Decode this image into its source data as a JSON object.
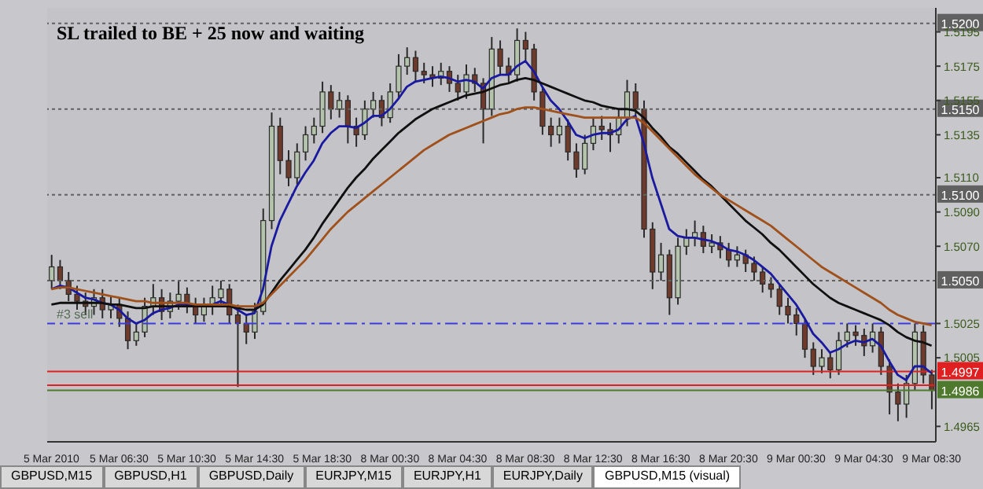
{
  "chart_data": {
    "type": "candlestick",
    "categories": [
      "5 Mar 2010",
      null,
      null,
      null,
      null,
      null,
      null,
      null,
      "5 Mar 06:30",
      null,
      null,
      null,
      null,
      null,
      null,
      null,
      "5 Mar 10:30",
      null,
      null,
      null,
      null,
      null,
      null,
      null,
      "5 Mar 14:30",
      null,
      null,
      null,
      null,
      null,
      null,
      null,
      "5 Mar 18:30",
      null,
      null,
      null,
      null,
      null,
      null,
      null,
      "8 Mar 00:30",
      null,
      null,
      null,
      null,
      null,
      null,
      null,
      "8 Mar 04:30",
      null,
      null,
      null,
      null,
      null,
      null,
      null,
      "8 Mar 08:30",
      null,
      null,
      null,
      null,
      null,
      null,
      null,
      "8 Mar 12:30",
      null,
      null,
      null,
      null,
      null,
      null,
      null,
      "8 Mar 16:30",
      null,
      null,
      null,
      null,
      null,
      null,
      null,
      "8 Mar 20:30",
      null,
      null,
      null,
      null,
      null,
      null,
      null,
      "9 Mar 00:30",
      null,
      null,
      null,
      null,
      null,
      null,
      null,
      "9 Mar 04:30",
      null,
      null,
      null,
      null,
      null,
      null,
      null,
      "9 Mar 08:30"
    ],
    "ohlc": [
      [
        1.505,
        1.5065,
        1.5045,
        1.5058
      ],
      [
        1.5058,
        1.5062,
        1.5045,
        1.505
      ],
      [
        1.505,
        1.5055,
        1.5038,
        1.5042
      ],
      [
        1.5042,
        1.5047,
        1.5033,
        1.5038
      ],
      [
        1.5038,
        1.5043,
        1.503,
        1.5035
      ],
      [
        1.5035,
        1.5045,
        1.503,
        1.504
      ],
      [
        1.504,
        1.5045,
        1.5028,
        1.5033
      ],
      [
        1.5033,
        1.5041,
        1.5028,
        1.5036
      ],
      [
        1.5036,
        1.504,
        1.5023,
        1.5028
      ],
      [
        1.5028,
        1.5032,
        1.501,
        1.5015
      ],
      [
        1.5015,
        1.5025,
        1.5012,
        1.502
      ],
      [
        1.502,
        1.504,
        1.5017,
        1.5035
      ],
      [
        1.5035,
        1.5048,
        1.503,
        1.504
      ],
      [
        1.504,
        1.5045,
        1.5027,
        1.5032
      ],
      [
        1.5032,
        1.5043,
        1.5028,
        1.5038
      ],
      [
        1.5038,
        1.505,
        1.5033,
        1.5042
      ],
      [
        1.5042,
        1.5046,
        1.5031,
        1.5036
      ],
      [
        1.5036,
        1.504,
        1.5025,
        1.503
      ],
      [
        1.503,
        1.504,
        1.5026,
        1.5035
      ],
      [
        1.5035,
        1.5047,
        1.503,
        1.504
      ],
      [
        1.504,
        1.505,
        1.5036,
        1.5045
      ],
      [
        1.5045,
        1.5048,
        1.5025,
        1.503
      ],
      [
        1.503,
        1.5036,
        1.4988,
        1.5025
      ],
      [
        1.5025,
        1.503,
        1.5013,
        1.502
      ],
      [
        1.502,
        1.5037,
        1.5016,
        1.5032
      ],
      [
        1.5032,
        1.5092,
        1.503,
        1.5085
      ],
      [
        1.5085,
        1.5148,
        1.508,
        1.514
      ],
      [
        1.514,
        1.5145,
        1.5112,
        1.512
      ],
      [
        1.512,
        1.5126,
        1.5105,
        1.511
      ],
      [
        1.511,
        1.513,
        1.5106,
        1.5125
      ],
      [
        1.5125,
        1.514,
        1.512,
        1.5135
      ],
      [
        1.5135,
        1.5145,
        1.513,
        1.514
      ],
      [
        1.514,
        1.5166,
        1.5136,
        1.516
      ],
      [
        1.516,
        1.5164,
        1.5144,
        1.515
      ],
      [
        1.515,
        1.516,
        1.5145,
        1.5155
      ],
      [
        1.5155,
        1.5158,
        1.513,
        1.514
      ],
      [
        1.514,
        1.5145,
        1.5128,
        1.5135
      ],
      [
        1.5135,
        1.5155,
        1.5132,
        1.515
      ],
      [
        1.515,
        1.516,
        1.5145,
        1.5155
      ],
      [
        1.5155,
        1.5158,
        1.514,
        1.5145
      ],
      [
        1.5145,
        1.5165,
        1.5142,
        1.516
      ],
      [
        1.516,
        1.5182,
        1.5156,
        1.5175
      ],
      [
        1.5175,
        1.5186,
        1.517,
        1.518
      ],
      [
        1.518,
        1.5184,
        1.5166,
        1.5172
      ],
      [
        1.5172,
        1.5177,
        1.5165,
        1.517
      ],
      [
        1.517,
        1.5175,
        1.5163,
        1.5168
      ],
      [
        1.5168,
        1.5177,
        1.5164,
        1.5172
      ],
      [
        1.5172,
        1.5175,
        1.516,
        1.5165
      ],
      [
        1.5165,
        1.517,
        1.5155,
        1.516
      ],
      [
        1.516,
        1.5176,
        1.5156,
        1.517
      ],
      [
        1.517,
        1.5174,
        1.516,
        1.5165
      ],
      [
        1.5165,
        1.5168,
        1.513,
        1.515
      ],
      [
        1.515,
        1.5192,
        1.5146,
        1.5185
      ],
      [
        1.5185,
        1.519,
        1.517,
        1.5175
      ],
      [
        1.5175,
        1.518,
        1.5165,
        1.517
      ],
      [
        1.517,
        1.5197,
        1.5166,
        1.519
      ],
      [
        1.519,
        1.5195,
        1.5178,
        1.5185
      ],
      [
        1.5185,
        1.5188,
        1.5155,
        1.516
      ],
      [
        1.516,
        1.5163,
        1.5135,
        1.514
      ],
      [
        1.514,
        1.5145,
        1.5128,
        1.5135
      ],
      [
        1.5135,
        1.5145,
        1.513,
        1.514
      ],
      [
        1.514,
        1.5144,
        1.512,
        1.5125
      ],
      [
        1.5125,
        1.513,
        1.511,
        1.5115
      ],
      [
        1.5115,
        1.5135,
        1.5112,
        1.513
      ],
      [
        1.513,
        1.5145,
        1.5126,
        1.514
      ],
      [
        1.514,
        1.5146,
        1.5132,
        1.5138
      ],
      [
        1.5138,
        1.5142,
        1.5125,
        1.5135
      ],
      [
        1.5135,
        1.515,
        1.513,
        1.5145
      ],
      [
        1.5145,
        1.5167,
        1.514,
        1.516
      ],
      [
        1.516,
        1.5165,
        1.5145,
        1.515
      ],
      [
        1.515,
        1.5155,
        1.5075,
        1.508
      ],
      [
        1.508,
        1.5084,
        1.5045,
        1.5055
      ],
      [
        1.5055,
        1.5072,
        1.505,
        1.5065
      ],
      [
        1.5065,
        1.5068,
        1.503,
        1.504
      ],
      [
        1.504,
        1.5075,
        1.5036,
        1.507
      ],
      [
        1.507,
        1.508,
        1.5065,
        1.5075
      ],
      [
        1.5075,
        1.5085,
        1.507,
        1.5078
      ],
      [
        1.5078,
        1.5082,
        1.5066,
        1.507
      ],
      [
        1.507,
        1.5077,
        1.5066,
        1.5072
      ],
      [
        1.5072,
        1.5076,
        1.5063,
        1.5068
      ],
      [
        1.5068,
        1.5072,
        1.5058,
        1.5062
      ],
      [
        1.5062,
        1.507,
        1.5058,
        1.5065
      ],
      [
        1.5065,
        1.5068,
        1.5055,
        1.506
      ],
      [
        1.506,
        1.5064,
        1.505,
        1.5055
      ],
      [
        1.5055,
        1.5058,
        1.5043,
        1.5048
      ],
      [
        1.5048,
        1.5052,
        1.504,
        1.5045
      ],
      [
        1.5045,
        1.5048,
        1.503,
        1.5035
      ],
      [
        1.5035,
        1.504,
        1.5025,
        1.503
      ],
      [
        1.503,
        1.5034,
        1.5018,
        1.5025
      ],
      [
        1.5025,
        1.5028,
        1.5005,
        1.501
      ],
      [
        1.501,
        1.5014,
        1.4995,
        1.5
      ],
      [
        1.5,
        1.501,
        1.4996,
        1.5005
      ],
      [
        1.5005,
        1.5008,
        1.4993,
        1.4998
      ],
      [
        1.4998,
        1.502,
        1.4995,
        1.5015
      ],
      [
        1.5015,
        1.5025,
        1.5011,
        1.502
      ],
      [
        1.502,
        1.5024,
        1.5012,
        1.5018
      ],
      [
        1.5018,
        1.5022,
        1.5006,
        1.5012
      ],
      [
        1.5012,
        1.5025,
        1.5008,
        1.502
      ],
      [
        1.502,
        1.5023,
        1.4995,
        1.5
      ],
      [
        1.5,
        1.5004,
        1.4972,
        1.4985
      ],
      [
        1.4985,
        1.499,
        1.4968,
        1.4978
      ],
      [
        1.4978,
        1.4995,
        1.497,
        1.499
      ],
      [
        1.499,
        1.5025,
        1.4986,
        1.502
      ],
      [
        1.502,
        1.5024,
        1.499,
        1.4995
      ],
      [
        1.4995,
        1.4998,
        1.4975,
        1.4986
      ]
    ],
    "series": [
      {
        "type": "line",
        "color": "#1a1aa0",
        "values": [
          1.5045,
          1.5047,
          1.5046,
          1.5043,
          1.504,
          1.5039,
          1.5037,
          1.5036,
          1.5033,
          1.5028,
          1.5025,
          1.5027,
          1.5031,
          1.5033,
          1.5034,
          1.5036,
          1.5036,
          1.5035,
          1.5035,
          1.5036,
          1.5038,
          1.5036,
          1.5033,
          1.503,
          1.5031,
          1.5045,
          1.507,
          1.5085,
          1.5095,
          1.5105,
          1.5113,
          1.512,
          1.513,
          1.5136,
          1.514,
          1.514,
          1.5139,
          1.5142,
          1.5146,
          1.5146,
          1.515,
          1.5156,
          1.5163,
          1.5166,
          1.5167,
          1.5168,
          1.5169,
          1.5168,
          1.5166,
          1.5167,
          1.5166,
          1.5162,
          1.5168,
          1.517,
          1.517,
          1.5175,
          1.5178,
          1.5172,
          1.5163,
          1.5155,
          1.515,
          1.5143,
          1.5135,
          1.5133,
          1.5135,
          1.5136,
          1.5136,
          1.5138,
          1.5144,
          1.5146,
          1.513,
          1.511,
          1.5095,
          1.508,
          1.5076,
          1.5075,
          1.5075,
          1.5074,
          1.5073,
          1.5071,
          1.5068,
          1.5067,
          1.5065,
          1.5062,
          1.5058,
          1.5054,
          1.5048,
          1.5042,
          1.5036,
          1.5028,
          1.5019,
          1.5014,
          1.5008,
          1.501,
          1.5013,
          1.5015,
          1.5014,
          1.5016,
          1.5012,
          1.5003,
          1.4995,
          1.4992,
          1.5,
          1.5,
          1.4996
        ]
      },
      {
        "type": "line",
        "color": "#101010",
        "values": [
          1.5036,
          1.5037,
          1.5037,
          1.5037,
          1.5037,
          1.5037,
          1.5037,
          1.5036,
          1.5036,
          1.5035,
          1.5034,
          1.5034,
          1.5035,
          1.5035,
          1.5035,
          1.5035,
          1.5035,
          1.5035,
          1.5035,
          1.5035,
          1.5035,
          1.5035,
          1.5034,
          1.5033,
          1.5033,
          1.5036,
          1.5043,
          1.505,
          1.5056,
          1.5062,
          1.5068,
          1.5075,
          1.5083,
          1.509,
          1.5097,
          1.5104,
          1.511,
          1.5115,
          1.5121,
          1.5126,
          1.5131,
          1.5136,
          1.514,
          1.5144,
          1.5147,
          1.515,
          1.5152,
          1.5154,
          1.5156,
          1.5158,
          1.5159,
          1.516,
          1.5162,
          1.5164,
          1.5165,
          1.5167,
          1.5168,
          1.5167,
          1.5165,
          1.5163,
          1.5161,
          1.5159,
          1.5157,
          1.5155,
          1.5154,
          1.5152,
          1.5151,
          1.515,
          1.515,
          1.5149,
          1.5145,
          1.5139,
          1.5134,
          1.5128,
          1.5124,
          1.5119,
          1.5114,
          1.5109,
          1.5105,
          1.51,
          1.5095,
          1.509,
          1.5085,
          1.5081,
          1.5077,
          1.5072,
          1.5068,
          1.5063,
          1.5058,
          1.5053,
          1.5048,
          1.5044,
          1.504,
          1.5037,
          1.5035,
          1.5033,
          1.5031,
          1.5029,
          1.5027,
          1.5024,
          1.502,
          1.5017,
          1.5015,
          1.5014,
          1.5012
        ]
      },
      {
        "type": "line",
        "color": "#a0501a",
        "values": [
          1.5045,
          1.5046,
          1.5046,
          1.5045,
          1.5044,
          1.5043,
          1.5042,
          1.5041,
          1.504,
          1.5039,
          1.5038,
          1.5038,
          1.5037,
          1.5037,
          1.5037,
          1.5037,
          1.5037,
          1.5036,
          1.5036,
          1.5036,
          1.5036,
          1.5036,
          1.5035,
          1.5035,
          1.5035,
          1.5037,
          1.5042,
          1.5047,
          1.5052,
          1.5057,
          1.5062,
          1.5068,
          1.5074,
          1.508,
          1.5085,
          1.509,
          1.5094,
          1.5098,
          1.5102,
          1.5106,
          1.511,
          1.5114,
          1.5118,
          1.5122,
          1.5126,
          1.5129,
          1.5132,
          1.5135,
          1.5137,
          1.5139,
          1.5141,
          1.5143,
          1.5145,
          1.5147,
          1.5148,
          1.515,
          1.5151,
          1.5151,
          1.515,
          1.5149,
          1.5148,
          1.5147,
          1.5146,
          1.5145,
          1.5145,
          1.5145,
          1.5145,
          1.5145,
          1.5145,
          1.5145,
          1.5142,
          1.5137,
          1.5132,
          1.5127,
          1.5122,
          1.5117,
          1.5112,
          1.5108,
          1.5104,
          1.51,
          1.5097,
          1.5094,
          1.5091,
          1.5088,
          1.5085,
          1.5082,
          1.5078,
          1.5074,
          1.507,
          1.5066,
          1.5062,
          1.5058,
          1.5055,
          1.5052,
          1.5049,
          1.5046,
          1.5043,
          1.504,
          1.5037,
          1.5033,
          1.503,
          1.5028,
          1.5026,
          1.5025,
          1.5024
        ]
      }
    ],
    "ylim": [
      1.4956,
      1.5209
    ],
    "yticks": [
      1.4965,
      1.5005,
      1.5025,
      {
        "value": 1.507,
        "label": "1.5070"
      },
      {
        "value": 1.509,
        "label": "1.5090"
      },
      {
        "value": 1.511,
        "label": "1.5110"
      },
      1.5135,
      1.5155,
      1.5175,
      1.5195
    ],
    "ref_lines": [
      {
        "axis": "y",
        "value": 1.52,
        "label": "1.5200",
        "color": "#606060",
        "line_style": "dotted"
      },
      {
        "axis": "y",
        "value": 1.515,
        "label": "1.5150",
        "color": "#606060",
        "line_style": "dotted"
      },
      {
        "axis": "y",
        "value": 1.51,
        "label": "1.5100",
        "color": "#606060",
        "line_style": "dotted"
      },
      {
        "axis": "y",
        "value": 1.505,
        "label": "1.5050",
        "color": "#606060",
        "line_style": "dotted"
      },
      {
        "axis": "y",
        "value": 1.5025,
        "label": "#3 sell",
        "color": "#3a3ae0",
        "line_style": "dashed"
      },
      {
        "axis": "y",
        "value": 1.4997,
        "label": "1.4997",
        "color": "#e02020",
        "line_style": "solid"
      },
      {
        "axis": "y",
        "value": 1.4989,
        "label": null,
        "color": "#e02020",
        "line_style": "solid"
      },
      {
        "axis": "y",
        "value": 1.4986,
        "label": "1.4986",
        "color": "#4f7a2e",
        "line_style": "solid"
      }
    ],
    "annotations": [
      "SL trailed to BE + 25 now and waiting",
      "GBPUSD,M15",
      "GBPUSD,H1",
      "GBPUSD,Daily",
      "EURJPY,M15",
      "EURJPY,H1",
      "EURJPY,Daily",
      "GBPUSD,M15 (visual)"
    ]
  }
}
